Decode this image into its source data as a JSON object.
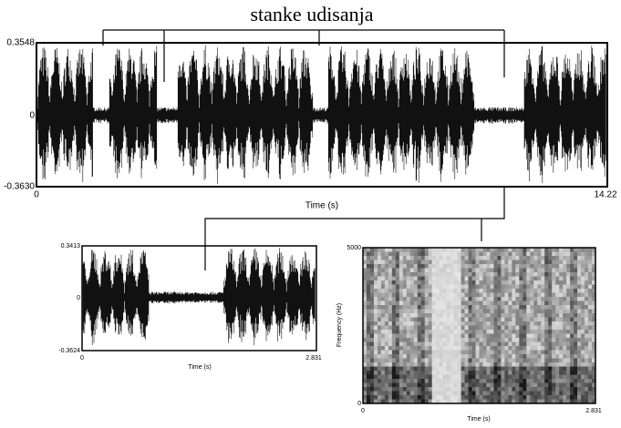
{
  "title": "stanke udisanja",
  "main_waveform": {
    "y_top": "0.3548",
    "y_zero": "0",
    "y_bottom": "-0.3630",
    "x_start": "0",
    "x_end": "14.22",
    "x_label": "Time (s)"
  },
  "detail_waveform": {
    "y_top": "0.3413",
    "y_zero": "0",
    "y_bottom": "-0.3624",
    "x_start": "0",
    "x_end": "2.831",
    "x_label": "Time (s)"
  },
  "spectrogram": {
    "y_top": "5000",
    "y_bottom": "0",
    "y_label": "Frequency (Hz)",
    "x_start": "0",
    "x_end": "2.831",
    "x_label": "Time (s)"
  }
}
